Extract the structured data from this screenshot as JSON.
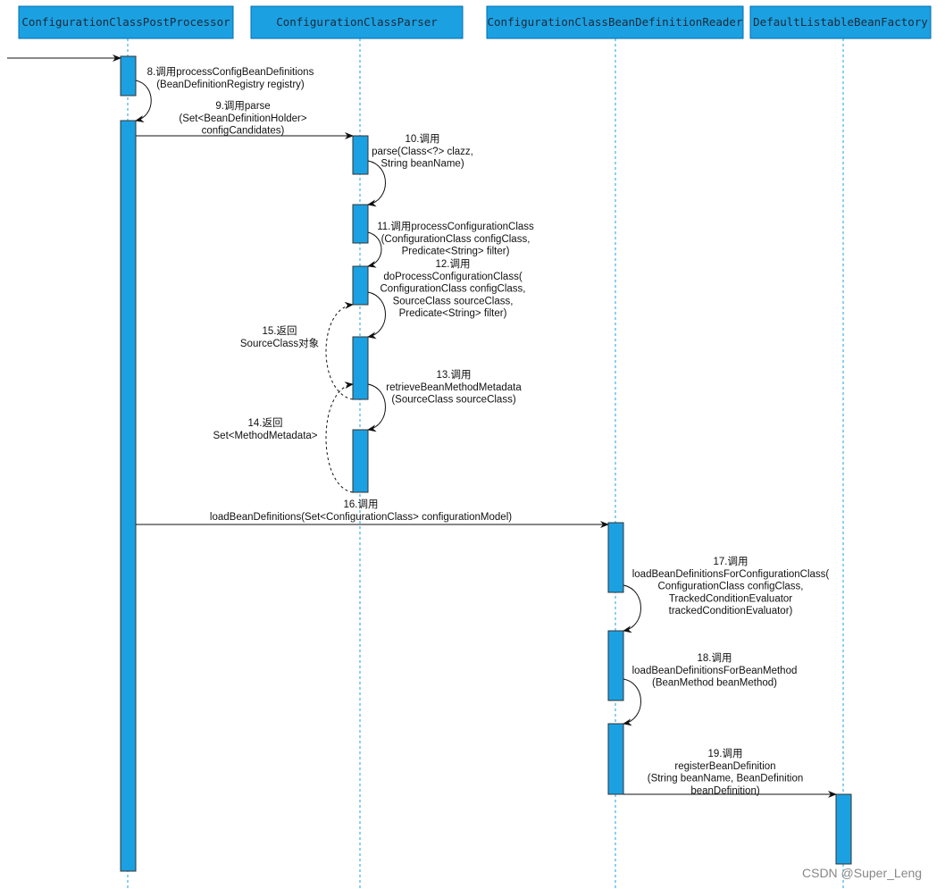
{
  "participants": [
    {
      "name": "ConfigurationClassPostProcessor"
    },
    {
      "name": "ConfigurationClassParser"
    },
    {
      "name": "ConfigurationClassBeanDefinitionReader"
    },
    {
      "name": "DefaultListableBeanFactory"
    }
  ],
  "messages": [
    {
      "id": "8",
      "kind": "self-call",
      "lines": [
        "8.调用processConfigBeanDefinitions",
        "(BeanDefinitionRegistry registry)"
      ]
    },
    {
      "id": "9",
      "kind": "call",
      "lines": [
        "9.调用parse",
        "(Set<BeanDefinitionHolder>",
        "configCandidates)"
      ]
    },
    {
      "id": "10",
      "kind": "self-call",
      "lines": [
        "10.调用",
        "parse(Class<?> clazz,",
        "String beanName)"
      ]
    },
    {
      "id": "11",
      "kind": "self-call",
      "lines": [
        "11.调用processConfigurationClass",
        "(ConfigurationClass configClass,",
        "Predicate<String> filter)"
      ]
    },
    {
      "id": "12",
      "kind": "self-call",
      "lines": [
        "12.调用",
        "doProcessConfigurationClass(",
        "ConfigurationClass configClass,",
        "SourceClass sourceClass,",
        "Predicate<String> filter)"
      ]
    },
    {
      "id": "13",
      "kind": "self-call",
      "lines": [
        "13.调用",
        "retrieveBeanMethodMetadata",
        "(SourceClass sourceClass)"
      ]
    },
    {
      "id": "14",
      "kind": "return",
      "lines": [
        "14.返回",
        "Set<MethodMetadata>"
      ]
    },
    {
      "id": "15",
      "kind": "return",
      "lines": [
        "15.返回",
        "SourceClass对象"
      ]
    },
    {
      "id": "16",
      "kind": "call",
      "lines": [
        "16.调用",
        "loadBeanDefinitions(Set<ConfigurationClass> configurationModel)"
      ]
    },
    {
      "id": "17",
      "kind": "self-call",
      "lines": [
        "17.调用",
        "loadBeanDefinitionsForConfigurationClass(",
        "ConfigurationClass configClass,",
        "TrackedConditionEvaluator",
        "trackedConditionEvaluator)"
      ]
    },
    {
      "id": "18",
      "kind": "self-call",
      "lines": [
        "18.调用",
        "loadBeanDefinitionsForBeanMethod",
        "(BeanMethod beanMethod)"
      ]
    },
    {
      "id": "19",
      "kind": "call",
      "lines": [
        "19.调用",
        "registerBeanDefinition",
        "(String beanName, BeanDefinition",
        "beanDefinition)"
      ]
    }
  ],
  "watermark": "CSDN @Super_Leng",
  "colors": {
    "participant_fill": "#1ba1e2",
    "activation_fill": "#1ba1e2",
    "lifeline": "#1ba1e2"
  }
}
